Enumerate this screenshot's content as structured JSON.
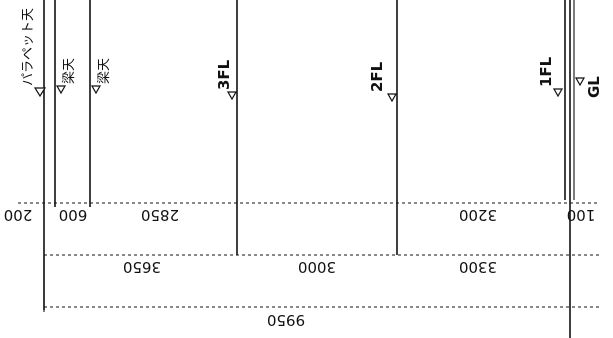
{
  "level_labels": {
    "parapet_top": "パラペット天",
    "beam_top_a": "梁天",
    "beam_top_b": "梁天",
    "third_floor": "3FL",
    "second_floor": "2FL",
    "first_floor": "1FL",
    "ground_level": "GL"
  },
  "dimensions": {
    "parapet": "200",
    "beam_depth": "600",
    "upper_sub": "2850",
    "first_floor_sub": "3200",
    "floor_offset": "100",
    "story_3": "3650",
    "story_2": "3000",
    "story_1": "3300",
    "total": "9950"
  }
}
